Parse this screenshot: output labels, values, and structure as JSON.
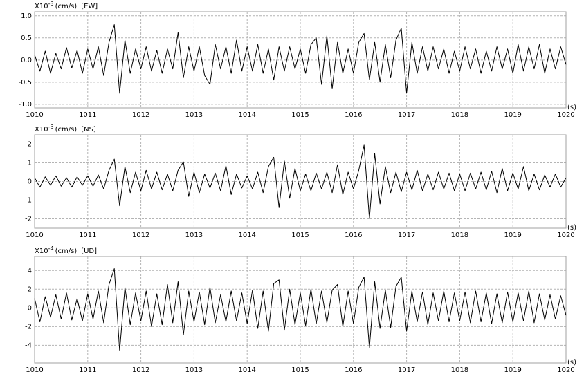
{
  "chart_data": [
    {
      "type": "line",
      "ylabel": {
        "base": "X10",
        "exponent": "-3",
        "unit": "(cm/s)",
        "component": "[EW]"
      },
      "xlabel": "(s)",
      "xlim": [
        1010,
        1020
      ],
      "xticks": [
        1010,
        1011,
        1012,
        1013,
        1014,
        1015,
        1016,
        1017,
        1018,
        1019,
        1020
      ],
      "ylim": [
        -1.08,
        1.09
      ],
      "yticks": [
        {
          "value": 1,
          "label": "1.0"
        },
        0.5,
        {
          "value": 0,
          "label": "0.0"
        },
        -0.5,
        {
          "value": -1,
          "label": "-1.0"
        }
      ],
      "grid": true,
      "color": "#000000",
      "x": [
        1010,
        1010.1,
        1010.2,
        1010.3,
        1010.4,
        1010.5,
        1010.6,
        1010.7,
        1010.8,
        1010.9,
        1011,
        1011.1,
        1011.2,
        1011.3,
        1011.4,
        1011.5,
        1011.6,
        1011.7,
        1011.8,
        1011.9,
        1012,
        1012.1,
        1012.2,
        1012.3,
        1012.4,
        1012.5,
        1012.6,
        1012.7,
        1012.8,
        1012.9,
        1013,
        1013.1,
        1013.2,
        1013.3,
        1013.4,
        1013.5,
        1013.6,
        1013.7,
        1013.8,
        1013.9,
        1014,
        1014.1,
        1014.2,
        1014.3,
        1014.4,
        1014.5,
        1014.6,
        1014.7,
        1014.8,
        1014.9,
        1015,
        1015.1,
        1015.2,
        1015.3,
        1015.4,
        1015.5,
        1015.6,
        1015.7,
        1015.8,
        1015.9,
        1016,
        1016.1,
        1016.2,
        1016.3,
        1016.4,
        1016.5,
        1016.6,
        1016.7,
        1016.8,
        1016.9,
        1017,
        1017.1,
        1017.2,
        1017.3,
        1017.4,
        1017.5,
        1017.6,
        1017.7,
        1017.8,
        1017.9,
        1018,
        1018.1,
        1018.2,
        1018.3,
        1018.4,
        1018.5,
        1018.6,
        1018.7,
        1018.8,
        1018.9,
        1019,
        1019.1,
        1019.2,
        1019.3,
        1019.4,
        1019.5,
        1019.6,
        1019.7,
        1019.8,
        1019.9,
        1020
      ],
      "values": [
        0.12,
        -0.25,
        0.2,
        -0.3,
        0.15,
        -0.2,
        0.28,
        -0.18,
        0.22,
        -0.3,
        0.25,
        -0.2,
        0.3,
        -0.35,
        0.4,
        0.8,
        -0.75,
        0.45,
        -0.3,
        0.25,
        -0.2,
        0.3,
        -0.25,
        0.22,
        -0.3,
        0.25,
        -0.2,
        0.62,
        -0.4,
        0.3,
        -0.25,
        0.3,
        -0.35,
        -0.55,
        0.35,
        -0.2,
        0.3,
        -0.3,
        0.45,
        -0.25,
        0.3,
        -0.25,
        0.35,
        -0.3,
        0.25,
        -0.45,
        0.3,
        -0.25,
        0.3,
        -0.2,
        0.25,
        -0.3,
        0.35,
        0.5,
        -0.55,
        0.55,
        -0.65,
        0.4,
        -0.3,
        0.25,
        -0.3,
        0.4,
        0.6,
        -0.45,
        0.4,
        -0.5,
        0.35,
        -0.4,
        0.45,
        0.72,
        -0.75,
        0.4,
        -0.3,
        0.3,
        -0.25,
        0.3,
        -0.2,
        0.25,
        -0.3,
        0.2,
        -0.25,
        0.3,
        -0.2,
        0.25,
        -0.3,
        0.2,
        -0.25,
        0.3,
        -0.2,
        0.25,
        -0.3,
        0.35,
        -0.25,
        0.3,
        -0.2,
        0.35,
        -0.3,
        0.25,
        -0.2,
        0.3,
        -0.1
      ]
    },
    {
      "type": "line",
      "ylabel": {
        "base": "X10",
        "exponent": "-3",
        "unit": "(cm/s)",
        "component": "[NS]"
      },
      "xlabel": "(s)",
      "xlim": [
        1010,
        1020
      ],
      "xticks": [
        1010,
        1011,
        1012,
        1013,
        1014,
        1015,
        1016,
        1017,
        1018,
        1019,
        1020
      ],
      "ylim": [
        -2.5,
        2.5
      ],
      "yticks": [
        2,
        1,
        0,
        -1,
        -2
      ],
      "grid": true,
      "color": "#000000",
      "x": [
        1010,
        1010.1,
        1010.2,
        1010.3,
        1010.4,
        1010.5,
        1010.6,
        1010.7,
        1010.8,
        1010.9,
        1011,
        1011.1,
        1011.2,
        1011.3,
        1011.4,
        1011.5,
        1011.6,
        1011.7,
        1011.8,
        1011.9,
        1012,
        1012.1,
        1012.2,
        1012.3,
        1012.4,
        1012.5,
        1012.6,
        1012.7,
        1012.8,
        1012.9,
        1013,
        1013.1,
        1013.2,
        1013.3,
        1013.4,
        1013.5,
        1013.6,
        1013.7,
        1013.8,
        1013.9,
        1014,
        1014.1,
        1014.2,
        1014.3,
        1014.4,
        1014.5,
        1014.6,
        1014.7,
        1014.8,
        1014.9,
        1015,
        1015.1,
        1015.2,
        1015.3,
        1015.4,
        1015.5,
        1015.6,
        1015.7,
        1015.8,
        1015.9,
        1016,
        1016.1,
        1016.2,
        1016.3,
        1016.4,
        1016.5,
        1016.6,
        1016.7,
        1016.8,
        1016.9,
        1017,
        1017.1,
        1017.2,
        1017.3,
        1017.4,
        1017.5,
        1017.6,
        1017.7,
        1017.8,
        1017.9,
        1018,
        1018.1,
        1018.2,
        1018.3,
        1018.4,
        1018.5,
        1018.6,
        1018.7,
        1018.8,
        1018.9,
        1019,
        1019.1,
        1019.2,
        1019.3,
        1019.4,
        1019.5,
        1019.6,
        1019.7,
        1019.8,
        1019.9,
        1020
      ],
      "values": [
        0.2,
        -0.3,
        0.25,
        -0.2,
        0.3,
        -0.25,
        0.2,
        -0.3,
        0.25,
        -0.2,
        0.3,
        -0.25,
        0.35,
        -0.4,
        0.6,
        1.2,
        -1.3,
        0.8,
        -0.6,
        0.5,
        -0.5,
        0.6,
        -0.4,
        0.5,
        -0.45,
        0.4,
        -0.5,
        0.6,
        1.05,
        -0.8,
        0.5,
        -0.6,
        0.4,
        -0.35,
        0.45,
        -0.5,
        0.85,
        -0.7,
        0.4,
        -0.35,
        0.3,
        -0.4,
        0.5,
        -0.6,
        0.8,
        1.3,
        -1.4,
        1.1,
        -0.9,
        0.7,
        -0.5,
        0.4,
        -0.5,
        0.45,
        -0.4,
        0.5,
        -0.6,
        0.9,
        -0.7,
        0.5,
        -0.4,
        0.6,
        1.95,
        -2.0,
        1.5,
        -1.2,
        0.8,
        -0.6,
        0.5,
        -0.55,
        0.5,
        -0.45,
        0.6,
        -0.5,
        0.4,
        -0.45,
        0.5,
        -0.4,
        0.45,
        -0.5,
        0.4,
        -0.5,
        0.45,
        -0.4,
        0.5,
        -0.45,
        0.55,
        -0.6,
        0.7,
        -0.5,
        0.45,
        -0.4,
        0.8,
        -0.5,
        0.4,
        -0.45,
        0.35,
        -0.3,
        0.4,
        -0.3,
        0.2
      ]
    },
    {
      "type": "line",
      "ylabel": {
        "base": "X10",
        "exponent": "-4",
        "unit": "(cm/s)",
        "component": "[UD]"
      },
      "xlabel": "(s)",
      "xlim": [
        1010,
        1020
      ],
      "xticks": [
        1010,
        1011,
        1012,
        1013,
        1014,
        1015,
        1016,
        1017,
        1018,
        1019,
        1020
      ],
      "ylim": [
        -5.9,
        5.5
      ],
      "yticks": [
        4,
        2,
        0,
        -2,
        -4
      ],
      "grid": true,
      "color": "#000000",
      "x": [
        1010,
        1010.1,
        1010.2,
        1010.3,
        1010.4,
        1010.5,
        1010.6,
        1010.7,
        1010.8,
        1010.9,
        1011,
        1011.1,
        1011.2,
        1011.3,
        1011.4,
        1011.5,
        1011.6,
        1011.7,
        1011.8,
        1011.9,
        1012,
        1012.1,
        1012.2,
        1012.3,
        1012.4,
        1012.5,
        1012.6,
        1012.7,
        1012.8,
        1012.9,
        1013,
        1013.1,
        1013.2,
        1013.3,
        1013.4,
        1013.5,
        1013.6,
        1013.7,
        1013.8,
        1013.9,
        1014,
        1014.1,
        1014.2,
        1014.3,
        1014.4,
        1014.5,
        1014.6,
        1014.7,
        1014.8,
        1014.9,
        1015,
        1015.1,
        1015.2,
        1015.3,
        1015.4,
        1015.5,
        1015.6,
        1015.7,
        1015.8,
        1015.9,
        1016,
        1016.1,
        1016.2,
        1016.3,
        1016.4,
        1016.5,
        1016.6,
        1016.7,
        1016.8,
        1016.9,
        1017,
        1017.1,
        1017.2,
        1017.3,
        1017.4,
        1017.5,
        1017.6,
        1017.7,
        1017.8,
        1017.9,
        1018,
        1018.1,
        1018.2,
        1018.3,
        1018.4,
        1018.5,
        1018.6,
        1018.7,
        1018.8,
        1018.9,
        1019,
        1019.1,
        1019.2,
        1019.3,
        1019.4,
        1019.5,
        1019.6,
        1019.7,
        1019.8,
        1019.9,
        1020
      ],
      "values": [
        1.0,
        -1.5,
        1.2,
        -1.0,
        1.4,
        -1.2,
        1.6,
        -1.3,
        1.0,
        -1.4,
        1.5,
        -1.2,
        1.8,
        -1.6,
        2.5,
        4.2,
        -4.6,
        2.2,
        -1.8,
        1.6,
        -1.4,
        1.8,
        -2.0,
        1.5,
        -1.8,
        2.5,
        -1.6,
        2.8,
        -2.9,
        1.8,
        -1.5,
        1.7,
        -1.8,
        2.2,
        -1.6,
        1.4,
        -1.5,
        1.8,
        -1.4,
        1.6,
        -1.7,
        1.9,
        -2.2,
        1.8,
        -2.5,
        2.6,
        3.0,
        -2.4,
        2.0,
        -1.8,
        1.6,
        -1.9,
        2.0,
        -1.7,
        1.8,
        -1.6,
        1.9,
        2.5,
        -2.0,
        1.8,
        -1.7,
        2.2,
        3.3,
        -4.3,
        2.8,
        -2.2,
        1.9,
        -2.1,
        2.3,
        3.3,
        -2.5,
        1.8,
        -1.5,
        1.7,
        -1.8,
        1.6,
        -1.4,
        1.8,
        -1.5,
        1.6,
        -1.4,
        1.7,
        -1.6,
        1.8,
        -1.5,
        1.6,
        -1.7,
        1.5,
        -1.6,
        1.7,
        -1.5,
        1.6,
        -1.4,
        1.8,
        -1.6,
        1.5,
        -1.3,
        1.4,
        -1.2,
        1.3,
        -0.8
      ]
    }
  ]
}
